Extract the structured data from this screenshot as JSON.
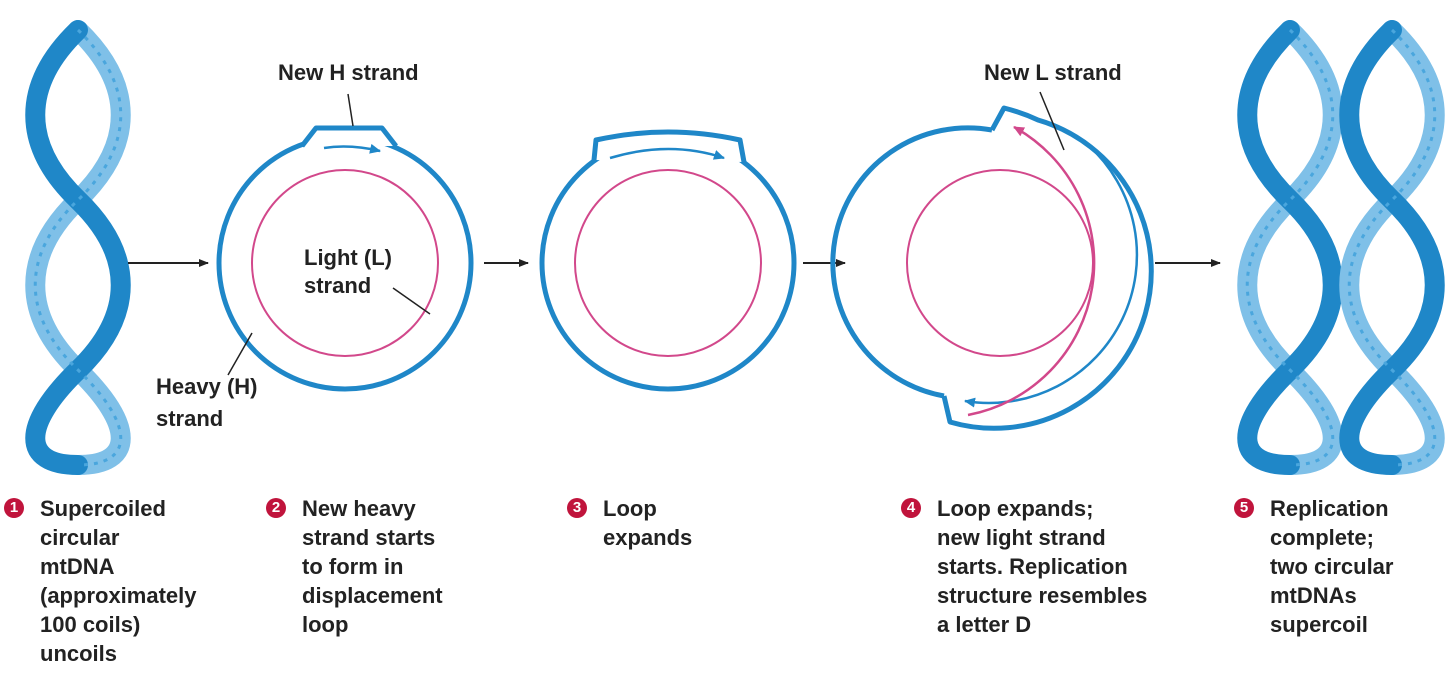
{
  "colors": {
    "heavy_strand": "#1f87c8",
    "helix_light": "#7fc0e8",
    "light_strand": "#d2488b",
    "step_badge": "#c0143c",
    "text": "#222222"
  },
  "labels": {
    "new_h_strand": "New H strand",
    "light_l_strand": "Light (L)\nstrand",
    "heavy_h_strand": "Heavy (H)\nstrand",
    "new_l_strand": "New L strand"
  },
  "steps": [
    {
      "number": "1",
      "text": "Supercoiled\ncircular\nmtDNA\n(approximately\n100 coils)\nuncoils"
    },
    {
      "number": "2",
      "text": "New heavy\nstrand starts\nto form in\ndisplacement\nloop"
    },
    {
      "number": "3",
      "text": "Loop\nexpands"
    },
    {
      "number": "4",
      "text": "Loop expands;\nnew light strand\nstarts. Replication\nstructure resembles\na letter D"
    },
    {
      "number": "5",
      "text": "Replication\ncomplete;\ntwo circular\nmtDNAs\nsupercoil"
    }
  ],
  "icons": [
    "supercoiled-dna-icon",
    "arrow-right-icon",
    "dna-circle-icon"
  ]
}
